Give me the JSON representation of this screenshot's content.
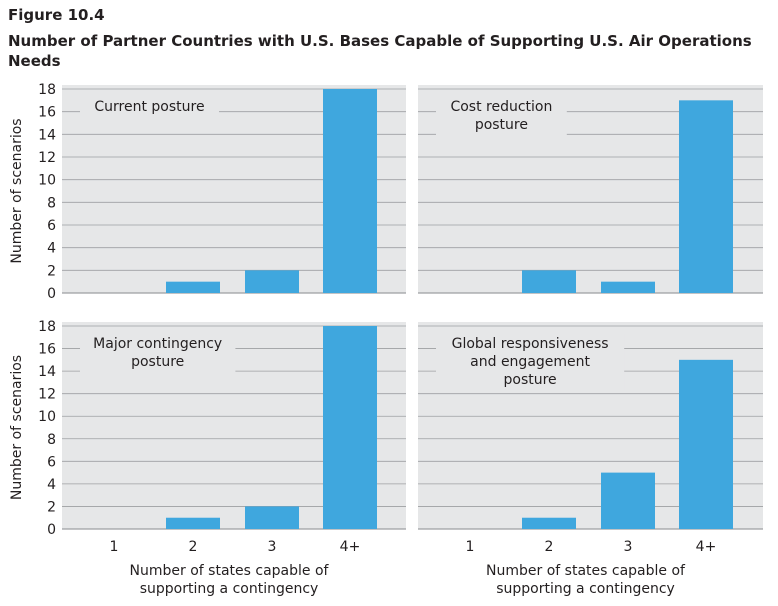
{
  "figure": {
    "number": "Figure 10.4",
    "title": "Number of Partner Countries with U.S. Bases Capable of Supporting U.S. Air Operations Needs"
  },
  "colors": {
    "panel_bg": "#e6e7e8",
    "bar": "#3fa7de",
    "grid": "#9d9fa2",
    "text": "#231f20"
  },
  "chart_data": [
    {
      "type": "bar",
      "title": [
        "Current posture"
      ],
      "categories": [
        "1",
        "2",
        "3",
        "4+"
      ],
      "values": [
        0,
        1,
        2,
        18
      ],
      "xlabel": "",
      "ylabel": "Number of scenarios",
      "ylim": [
        0,
        18
      ],
      "yticks": [
        "0",
        "2",
        "4",
        "6",
        "8",
        "10",
        "12",
        "14",
        "16",
        "18"
      ],
      "grid": true
    },
    {
      "type": "bar",
      "title": [
        "Cost reduction",
        "posture"
      ],
      "categories": [
        "1",
        "2",
        "3",
        "4+"
      ],
      "values": [
        0,
        2,
        1,
        17
      ],
      "xlabel": "",
      "ylabel": "",
      "ylim": [
        0,
        18
      ],
      "grid": true
    },
    {
      "type": "bar",
      "title": [
        "Major contingency",
        "posture"
      ],
      "categories": [
        "1",
        "2",
        "3",
        "4+"
      ],
      "values": [
        0,
        1,
        2,
        18
      ],
      "xlabel": [
        "Number of states capable of",
        "supporting a contingency"
      ],
      "ylabel": "Number of scenarios",
      "ylim": [
        0,
        18
      ],
      "yticks": [
        "0",
        "2",
        "4",
        "6",
        "8",
        "10",
        "12",
        "14",
        "16",
        "18"
      ],
      "grid": true
    },
    {
      "type": "bar",
      "title": [
        "Global responsiveness",
        "and engagement",
        "posture"
      ],
      "categories": [
        "1",
        "2",
        "3",
        "4+"
      ],
      "values": [
        0,
        1,
        5,
        15
      ],
      "xlabel": [
        "Number of states capable of",
        "supporting a contingency"
      ],
      "ylabel": "",
      "ylim": [
        0,
        18
      ],
      "grid": true
    }
  ]
}
